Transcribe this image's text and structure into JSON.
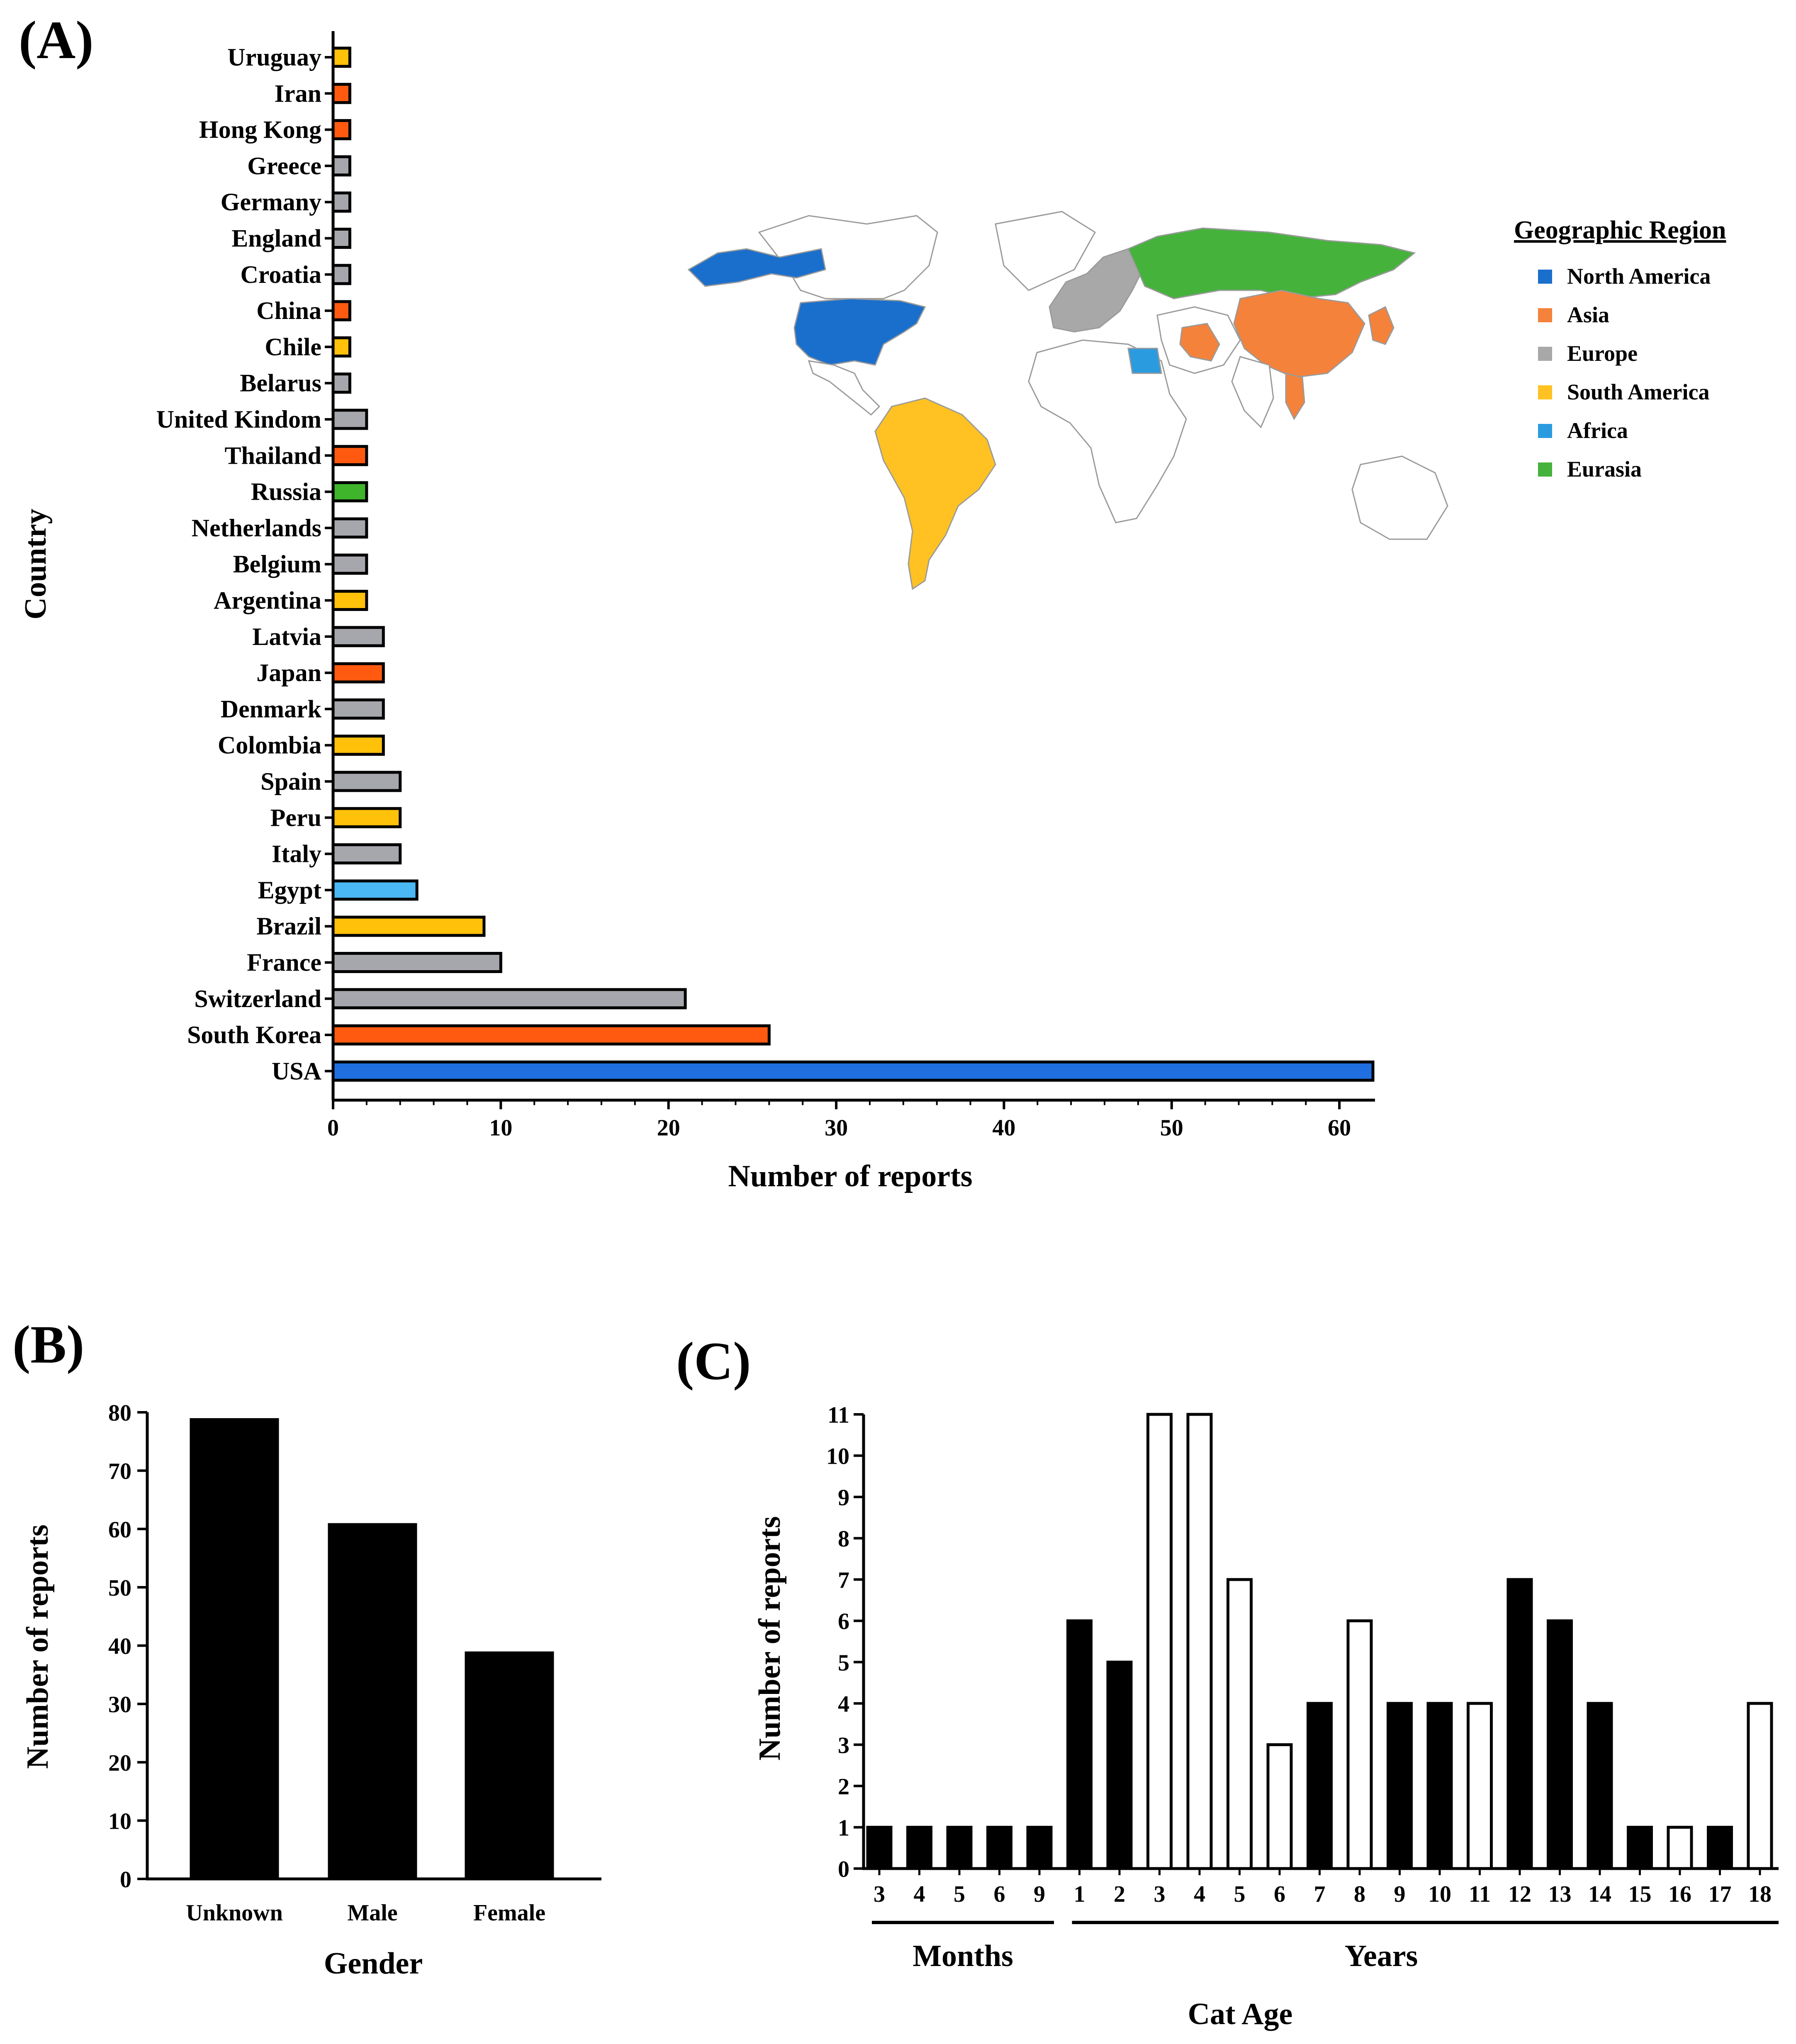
{
  "panels": {
    "a": {
      "label": "(A)"
    },
    "b": {
      "label": "(B)"
    },
    "c": {
      "label": "(C)"
    }
  },
  "legend": {
    "title": "Geographic Region",
    "items": [
      {
        "name": "North America",
        "color": "#1a6fcc"
      },
      {
        "name": "Asia",
        "color": "#f5823a"
      },
      {
        "name": "Europe",
        "color": "#a8a8a8"
      },
      {
        "name": "South America",
        "color": "#ffc222"
      },
      {
        "name": "Africa",
        "color": "#2b9be0"
      },
      {
        "name": "Eurasia",
        "color": "#45b23c"
      }
    ]
  },
  "region_colors": {
    "North America": "#1f6fe0",
    "Asia": "#ff5a10",
    "Europe": "#a6a6ad",
    "South America": "#ffc10a",
    "Africa": "#4ab8f5",
    "Eurasia": "#3fb52c"
  },
  "chart_data": [
    {
      "id": "A",
      "type": "bar",
      "orientation": "horizontal",
      "xlabel": "Number of reports",
      "ylabel": "Country",
      "xlim": [
        0,
        62
      ],
      "xticks": [
        0,
        10,
        20,
        30,
        40,
        50,
        60
      ],
      "categories": [
        "Uruguay",
        "Iran",
        "Hong Kong",
        "Greece",
        "Germany",
        "England",
        "Croatia",
        "China",
        "Chile",
        "Belarus",
        "United Kindom",
        "Thailand",
        "Russia",
        "Netherlands",
        "Belgium",
        "Argentina",
        "Latvia",
        "Japan",
        "Denmark",
        "Colombia",
        "Spain",
        "Peru",
        "Italy",
        "Egypt",
        "Brazil",
        "France",
        "Switzerland",
        "South Korea",
        "USA"
      ],
      "values": [
        1,
        1,
        1,
        1,
        1,
        1,
        1,
        1,
        1,
        1,
        2,
        2,
        2,
        2,
        2,
        2,
        3,
        3,
        3,
        3,
        4,
        4,
        4,
        5,
        9,
        10,
        21,
        26,
        62
      ],
      "regions": [
        "South America",
        "Asia",
        "Asia",
        "Europe",
        "Europe",
        "Europe",
        "Europe",
        "Asia",
        "South America",
        "Europe",
        "Europe",
        "Asia",
        "Eurasia",
        "Europe",
        "Europe",
        "South America",
        "Europe",
        "Asia",
        "Europe",
        "South America",
        "Europe",
        "South America",
        "Europe",
        "Africa",
        "South America",
        "Europe",
        "Europe",
        "Asia",
        "North America"
      ]
    },
    {
      "id": "B",
      "type": "bar",
      "xlabel": "Gender",
      "ylabel": "Number of reports",
      "ylim": [
        0,
        80
      ],
      "yticks": [
        0,
        10,
        20,
        30,
        40,
        50,
        60,
        70,
        80
      ],
      "categories": [
        "Unknown",
        "Male",
        "Female"
      ],
      "values": [
        79,
        61,
        39
      ]
    },
    {
      "id": "C",
      "type": "bar",
      "xlabel": "Cat Age",
      "ylabel": "Number of reports",
      "ylim": [
        0,
        11
      ],
      "yticks": [
        0,
        1,
        2,
        3,
        4,
        5,
        6,
        7,
        8,
        9,
        10,
        11
      ],
      "group_labels": [
        "Months",
        "Years"
      ],
      "categories": [
        "3",
        "4",
        "5",
        "6",
        "9",
        "1",
        "2",
        "3",
        "4",
        "5",
        "6",
        "7",
        "8",
        "9",
        "10",
        "11",
        "12",
        "13",
        "14",
        "15",
        "16",
        "17",
        "18"
      ],
      "groups": [
        "Months",
        "Months",
        "Months",
        "Months",
        "Months",
        "Years",
        "Years",
        "Years",
        "Years",
        "Years",
        "Years",
        "Years",
        "Years",
        "Years",
        "Years",
        "Years",
        "Years",
        "Years",
        "Years",
        "Years",
        "Years",
        "Years",
        "Years"
      ],
      "values": [
        1,
        1,
        1,
        1,
        1,
        6,
        5,
        11,
        11,
        7,
        3,
        4,
        6,
        4,
        4,
        4,
        7,
        6,
        4,
        1,
        1,
        1,
        4
      ],
      "filled": [
        true,
        true,
        true,
        true,
        true,
        true,
        true,
        false,
        false,
        false,
        false,
        true,
        false,
        true,
        true,
        false,
        true,
        true,
        true,
        true,
        false,
        true,
        false
      ]
    }
  ]
}
